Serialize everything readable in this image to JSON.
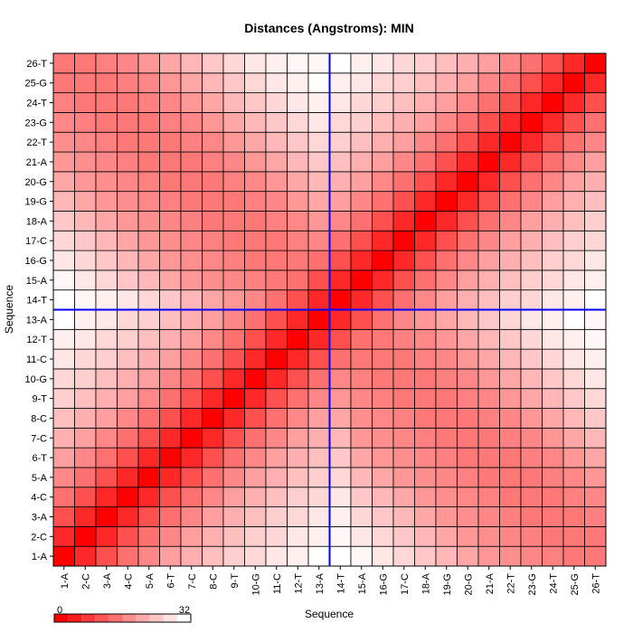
{
  "chart_data": {
    "type": "heatmap",
    "title": "Distances (Angstroms):  MIN",
    "xlabel": "Sequence",
    "ylabel": "Sequence",
    "x_categories": [
      "1-A",
      "2-C",
      "3-A",
      "4-C",
      "5-A",
      "6-T",
      "7-C",
      "8-C",
      "9-T",
      "10-G",
      "11-C",
      "12-T",
      "13-A",
      "14-T",
      "15-A",
      "16-G",
      "17-C",
      "18-A",
      "19-G",
      "20-G",
      "21-A",
      "22-T",
      "23-G",
      "24-T",
      "25-G",
      "26-T"
    ],
    "y_categories": [
      "1-A",
      "2-C",
      "3-A",
      "4-C",
      "5-A",
      "6-T",
      "7-C",
      "8-C",
      "9-T",
      "10-G",
      "11-C",
      "12-T",
      "13-A",
      "14-T",
      "15-A",
      "16-G",
      "17-C",
      "18-A",
      "19-G",
      "20-G",
      "21-A",
      "22-T",
      "23-G",
      "24-T",
      "25-G",
      "26-T"
    ],
    "value_range": [
      0,
      32
    ],
    "colorbar": {
      "min_label": "0",
      "max_label": "32",
      "low_color": "#ff0000",
      "high_color": "#ffffff",
      "steps": 10
    },
    "divider_after": "13-A",
    "divider_color": "#0000ff",
    "values": [
      [
        0,
        5,
        10,
        14,
        17,
        20,
        22,
        24,
        26,
        27,
        29,
        30,
        32,
        32,
        31,
        29,
        27,
        25,
        23,
        21,
        19,
        18,
        17,
        16,
        15,
        15
      ],
      [
        5,
        0,
        5,
        10,
        14,
        17,
        20,
        22,
        24,
        26,
        27,
        29,
        30,
        31,
        29,
        27,
        25,
        23,
        21,
        19,
        18,
        17,
        16,
        15,
        15,
        15
      ],
      [
        10,
        5,
        0,
        5,
        10,
        14,
        17,
        20,
        22,
        24,
        26,
        27,
        29,
        30,
        27,
        25,
        23,
        21,
        19,
        18,
        17,
        16,
        15,
        15,
        15,
        16
      ],
      [
        14,
        10,
        5,
        0,
        5,
        10,
        14,
        17,
        20,
        22,
        24,
        26,
        27,
        29,
        25,
        23,
        21,
        19,
        18,
        17,
        16,
        15,
        15,
        15,
        16,
        17
      ],
      [
        17,
        14,
        10,
        5,
        0,
        5,
        10,
        14,
        17,
        20,
        22,
        24,
        26,
        27,
        23,
        21,
        19,
        18,
        17,
        16,
        15,
        15,
        15,
        16,
        17,
        19
      ],
      [
        20,
        17,
        14,
        10,
        5,
        0,
        5,
        10,
        14,
        17,
        20,
        22,
        24,
        25,
        21,
        19,
        18,
        17,
        16,
        15,
        15,
        15,
        16,
        17,
        19,
        21
      ],
      [
        22,
        20,
        17,
        14,
        10,
        5,
        0,
        5,
        10,
        14,
        17,
        20,
        22,
        23,
        19,
        18,
        17,
        16,
        15,
        15,
        15,
        16,
        17,
        19,
        21,
        23
      ],
      [
        24,
        22,
        20,
        17,
        14,
        10,
        5,
        0,
        5,
        10,
        14,
        17,
        20,
        21,
        18,
        17,
        16,
        15,
        15,
        15,
        16,
        17,
        19,
        21,
        23,
        25
      ],
      [
        26,
        24,
        22,
        20,
        17,
        14,
        10,
        5,
        0,
        5,
        10,
        14,
        17,
        19,
        17,
        16,
        15,
        15,
        15,
        16,
        17,
        19,
        21,
        23,
        25,
        27
      ],
      [
        27,
        26,
        24,
        22,
        20,
        17,
        14,
        10,
        5,
        0,
        5,
        10,
        14,
        17,
        16,
        15,
        15,
        15,
        16,
        17,
        19,
        21,
        23,
        25,
        27,
        29
      ],
      [
        29,
        27,
        26,
        24,
        22,
        20,
        17,
        14,
        10,
        5,
        0,
        5,
        10,
        14,
        15,
        15,
        15,
        16,
        17,
        19,
        21,
        23,
        25,
        27,
        29,
        30
      ],
      [
        30,
        29,
        27,
        26,
        24,
        22,
        20,
        17,
        14,
        10,
        5,
        0,
        5,
        10,
        14,
        15,
        16,
        17,
        19,
        21,
        23,
        25,
        27,
        29,
        30,
        31
      ],
      [
        32,
        30,
        29,
        27,
        26,
        24,
        22,
        20,
        17,
        14,
        10,
        5,
        0,
        5,
        10,
        14,
        17,
        19,
        21,
        23,
        25,
        27,
        29,
        30,
        32,
        31
      ],
      [
        32,
        31,
        30,
        29,
        27,
        25,
        23,
        21,
        19,
        17,
        14,
        10,
        5,
        0,
        5,
        10,
        14,
        17,
        20,
        22,
        24,
        26,
        27,
        29,
        30,
        32
      ],
      [
        31,
        29,
        27,
        25,
        23,
        21,
        19,
        18,
        17,
        16,
        15,
        14,
        10,
        5,
        0,
        5,
        10,
        14,
        17,
        20,
        22,
        24,
        26,
        27,
        29,
        30
      ],
      [
        29,
        27,
        25,
        23,
        21,
        19,
        18,
        17,
        16,
        15,
        15,
        15,
        14,
        10,
        5,
        0,
        5,
        10,
        14,
        17,
        20,
        22,
        24,
        26,
        27,
        29
      ],
      [
        27,
        25,
        23,
        21,
        19,
        18,
        17,
        16,
        15,
        15,
        15,
        16,
        17,
        14,
        10,
        5,
        0,
        5,
        10,
        14,
        17,
        20,
        22,
        24,
        26,
        27
      ],
      [
        25,
        23,
        21,
        19,
        18,
        17,
        16,
        15,
        15,
        15,
        16,
        17,
        19,
        17,
        14,
        10,
        5,
        0,
        5,
        10,
        14,
        17,
        20,
        22,
        24,
        26
      ],
      [
        23,
        21,
        19,
        18,
        17,
        16,
        15,
        15,
        15,
        16,
        17,
        19,
        21,
        20,
        17,
        14,
        10,
        5,
        0,
        5,
        10,
        14,
        17,
        20,
        22,
        24
      ],
      [
        21,
        19,
        18,
        17,
        16,
        15,
        15,
        15,
        16,
        17,
        19,
        21,
        23,
        22,
        20,
        17,
        14,
        10,
        5,
        0,
        5,
        10,
        14,
        17,
        20,
        22
      ],
      [
        19,
        18,
        17,
        16,
        15,
        15,
        15,
        16,
        17,
        19,
        21,
        23,
        25,
        24,
        22,
        20,
        17,
        14,
        10,
        5,
        0,
        5,
        10,
        14,
        17,
        20
      ],
      [
        18,
        17,
        16,
        15,
        15,
        15,
        16,
        17,
        19,
        21,
        23,
        25,
        27,
        26,
        24,
        22,
        20,
        17,
        14,
        10,
        5,
        0,
        5,
        10,
        14,
        17
      ],
      [
        17,
        16,
        15,
        15,
        15,
        16,
        17,
        19,
        21,
        23,
        25,
        27,
        29,
        27,
        26,
        24,
        22,
        20,
        17,
        14,
        10,
        5,
        0,
        5,
        10,
        14
      ],
      [
        16,
        15,
        15,
        15,
        16,
        17,
        19,
        21,
        23,
        25,
        27,
        29,
        30,
        29,
        27,
        26,
        24,
        22,
        20,
        17,
        14,
        10,
        5,
        0,
        5,
        10
      ],
      [
        15,
        15,
        15,
        16,
        17,
        19,
        21,
        23,
        25,
        27,
        29,
        30,
        32,
        30,
        29,
        27,
        26,
        24,
        22,
        20,
        17,
        14,
        10,
        5,
        0,
        5
      ],
      [
        15,
        15,
        16,
        17,
        19,
        21,
        23,
        25,
        27,
        29,
        30,
        31,
        31,
        32,
        30,
        29,
        27,
        26,
        24,
        22,
        20,
        17,
        14,
        10,
        5,
        0
      ]
    ]
  }
}
